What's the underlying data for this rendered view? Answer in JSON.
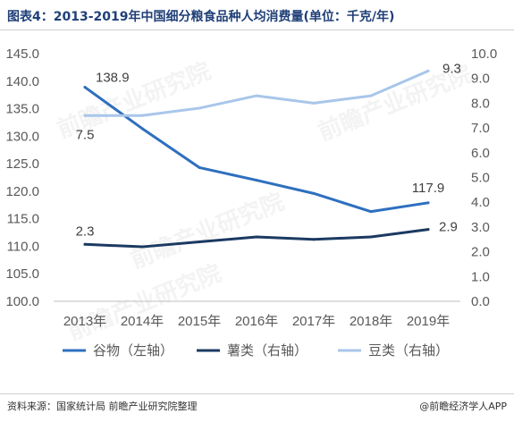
{
  "title": "图表4：2013-2019年中国细分粮食品种人均消费量(单位：千克/年)",
  "source": "资料来源：国家统计局 前瞻产业研究院整理",
  "brand": "@前瞻经济学人APP",
  "watermark": "前瞻产业研究院",
  "chart_data": {
    "type": "line",
    "categories": [
      "2013年",
      "2014年",
      "2015年",
      "2016年",
      "2017年",
      "2018年",
      "2019年"
    ],
    "left_axis": {
      "min": 100.0,
      "max": 145.0,
      "step": 5.0,
      "ticks": [
        "100.0",
        "105.0",
        "110.0",
        "115.0",
        "120.0",
        "125.0",
        "130.0",
        "135.0",
        "140.0",
        "145.0"
      ]
    },
    "right_axis": {
      "min": 0.0,
      "max": 10.0,
      "step": 1.0,
      "ticks": [
        "0.0",
        "1.0",
        "2.0",
        "3.0",
        "4.0",
        "5.0",
        "6.0",
        "7.0",
        "8.0",
        "9.0",
        "10.0"
      ]
    },
    "series": [
      {
        "name": "谷物（左轴）",
        "axis": "left",
        "color": "#2e6fbf",
        "values": [
          138.9,
          131.4,
          124.3,
          122.0,
          119.6,
          116.3,
          117.9
        ],
        "labels": [
          {
            "index": 0,
            "text": "138.9"
          },
          {
            "index": 6,
            "text": "117.9"
          }
        ]
      },
      {
        "name": "薯类（右轴）",
        "axis": "right",
        "color": "#1b3a62",
        "values": [
          2.3,
          2.2,
          2.4,
          2.6,
          2.5,
          2.6,
          2.9
        ],
        "labels": [
          {
            "index": 0,
            "text": "2.3"
          },
          {
            "index": 6,
            "text": "2.9"
          }
        ]
      },
      {
        "name": "豆类（右轴）",
        "axis": "right",
        "color": "#a9c6ea",
        "values": [
          7.5,
          7.5,
          7.8,
          8.3,
          8.0,
          8.3,
          9.3
        ],
        "labels": [
          {
            "index": 0,
            "text": "7.5"
          },
          {
            "index": 6,
            "text": "9.3"
          }
        ]
      }
    ],
    "grid": false,
    "legend": "bottom"
  }
}
